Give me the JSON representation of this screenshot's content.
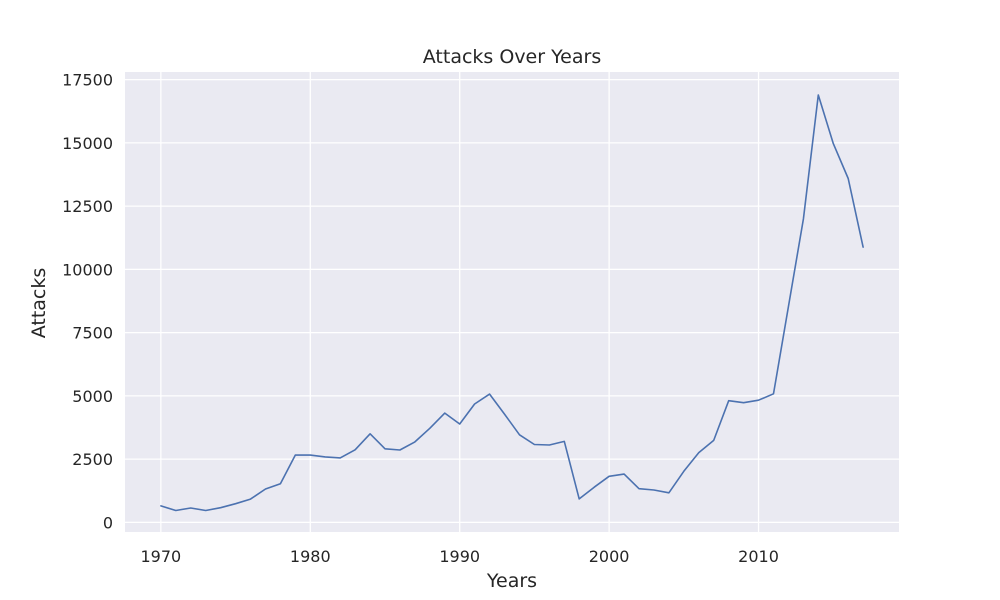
{
  "colors": {
    "plot_background": "#eaeaf2",
    "grid": "#ffffff",
    "series": "#4c72b0",
    "text": "#262626"
  },
  "chart_data": {
    "type": "line",
    "title": "Attacks Over Years",
    "xlabel": "Years",
    "ylabel": "Attacks",
    "xlim": [
      1967.6,
      2019.4
    ],
    "ylim": [
      -380,
      17800
    ],
    "xticks": [
      1970,
      1980,
      1990,
      2000,
      2010
    ],
    "yticks": [
      0,
      2500,
      5000,
      7500,
      10000,
      12500,
      15000,
      17500
    ],
    "grid": true,
    "series": [
      {
        "values_x": [
          1970,
          1971,
          1972,
          1973,
          1974,
          1975,
          1976,
          1977,
          1978,
          1979,
          1980,
          1981,
          1982,
          1983,
          1984,
          1985,
          1986,
          1987,
          1988,
          1989,
          1990,
          1991,
          1992,
          1993,
          1994,
          1995,
          1996,
          1997,
          1998,
          1999,
          2000,
          2001,
          2002,
          2003,
          2004,
          2005,
          2006,
          2007,
          2008,
          2009,
          2010,
          2011,
          2012,
          2013,
          2014,
          2015,
          2016,
          2017
        ],
        "values_y": [
          650,
          470,
          570,
          470,
          580,
          740,
          920,
          1320,
          1530,
          2660,
          2660,
          2590,
          2550,
          2870,
          3500,
          2910,
          2860,
          3180,
          3720,
          4320,
          3890,
          4680,
          5070,
          4280,
          3460,
          3080,
          3060,
          3200,
          930,
          1390,
          1820,
          1910,
          1330,
          1280,
          1170,
          2020,
          2760,
          3240,
          4810,
          4730,
          4830,
          5080,
          8520,
          11990,
          16890,
          14970,
          13590,
          10880
        ]
      }
    ]
  }
}
